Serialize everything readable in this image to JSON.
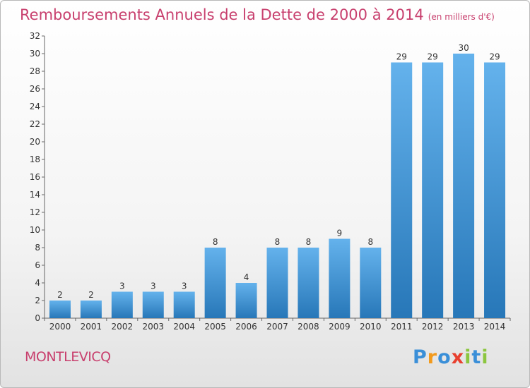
{
  "title": "Remboursements Annuels de la Dette de 2000 à 2014",
  "subtitle": "(en milliers d'€)",
  "commune": "MONTLEVICQ",
  "logo": {
    "text": "Proxiti",
    "letters": [
      "P",
      "r",
      "o",
      "x",
      "i",
      "t",
      "i"
    ],
    "colors": [
      "#3a8fd8",
      "#f29a1c",
      "#3a8fd8",
      "#e8402f",
      "#8cc63f",
      "#3a8fd8",
      "#8cc63f"
    ]
  },
  "colors": {
    "bar_light": "#64b2ec",
    "bar_dark": "#2777b8",
    "title": "#c8406e"
  },
  "chart_data": {
    "type": "bar",
    "title": "Remboursements Annuels de la Dette de 2000 à 2014",
    "subtitle": "(en milliers d'€)",
    "xlabel": "",
    "ylabel": "",
    "categories": [
      "2000",
      "2001",
      "2002",
      "2003",
      "2004",
      "2005",
      "2006",
      "2007",
      "2008",
      "2009",
      "2010",
      "2011",
      "2012",
      "2013",
      "2014"
    ],
    "values": [
      2,
      2,
      3,
      3,
      3,
      8,
      4,
      8,
      8,
      9,
      8,
      29,
      29,
      30,
      29
    ],
    "ylim": [
      0,
      32
    ],
    "yticks": [
      0,
      2,
      4,
      6,
      8,
      10,
      12,
      14,
      16,
      18,
      20,
      22,
      24,
      26,
      28,
      30,
      32
    ],
    "grid": false,
    "legend": "none"
  }
}
